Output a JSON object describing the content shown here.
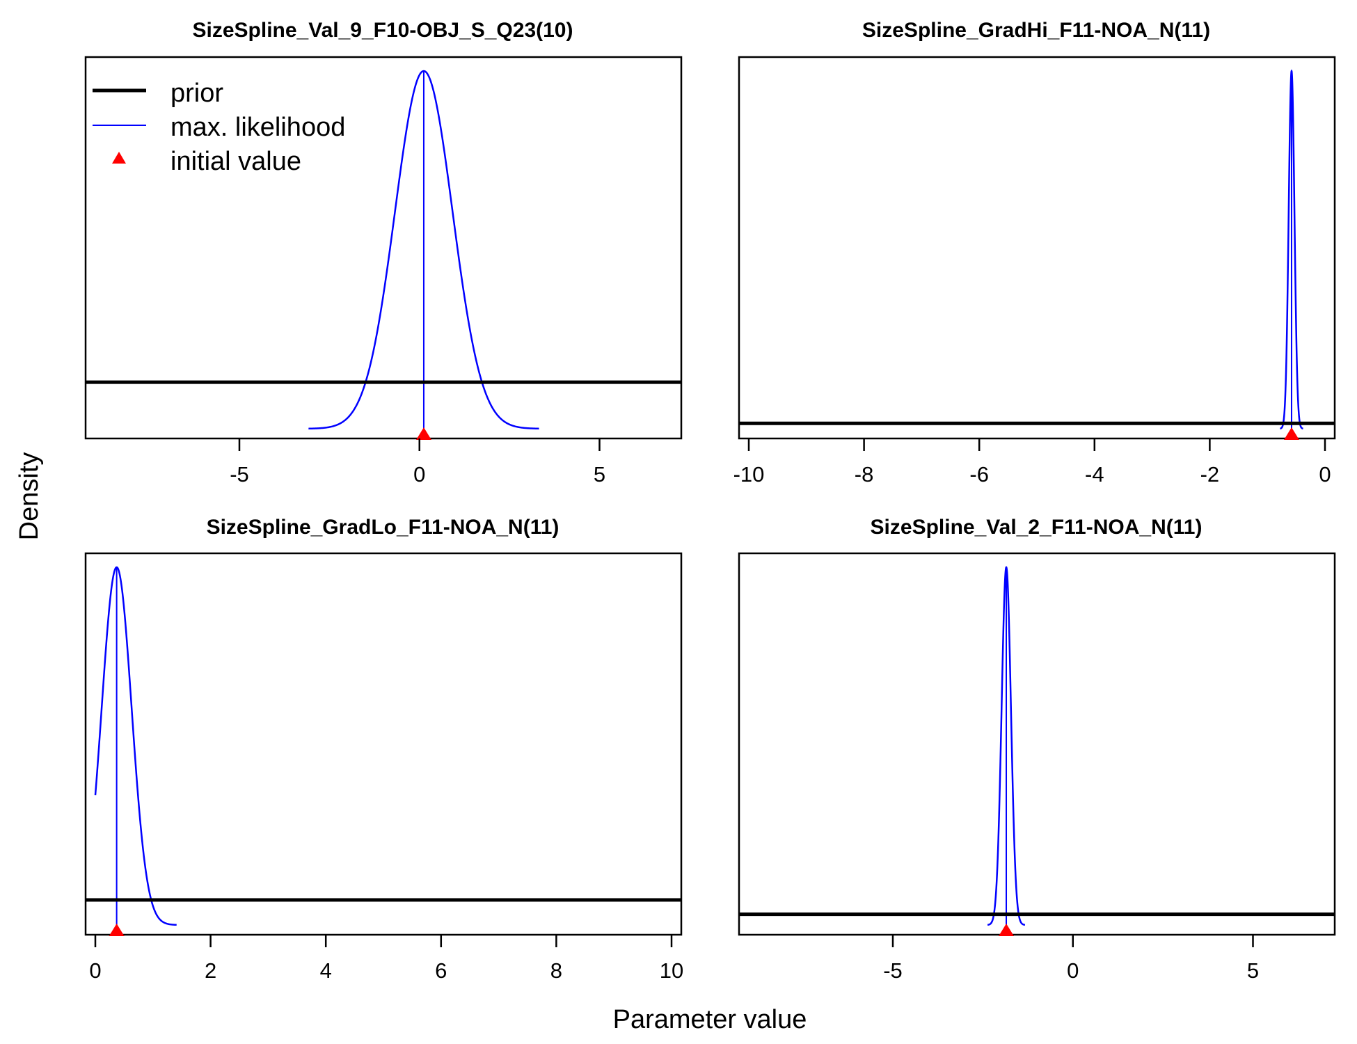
{
  "figure": {
    "xlabel": "Parameter value",
    "ylabel": "Density",
    "legend": {
      "placement": "top-left of first panel",
      "entries": [
        {
          "label": "prior",
          "style": "line",
          "color": "#000000"
        },
        {
          "label": "max. likelihood",
          "style": "line",
          "color": "#0000ff"
        },
        {
          "label": "initial value",
          "style": "triangle",
          "color": "#ff0000"
        }
      ]
    },
    "colors": {
      "prior": "#000000",
      "max_likelihood": "#0000ff",
      "initial_value": "#ff0000",
      "vertical_line": "#0000ff"
    }
  },
  "chart_data": [
    {
      "type": "line",
      "title": "SizeSpline_Val_9_F10-OBJ_S_Q23(10)",
      "xlim": [
        -9,
        7
      ],
      "ticks": [
        -5,
        0,
        5
      ],
      "tick_labels": [
        "-5",
        "0",
        "5"
      ],
      "ylim": [
        0,
        1
      ],
      "grid": false,
      "prior_density": 0.13,
      "ml": {
        "mean": 0.12,
        "sd": 0.8,
        "peak": 1.0
      },
      "initial_value": 0.12
    },
    {
      "type": "line",
      "title": "SizeSpline_GradHi_F11-NOA_N(11)",
      "xlim": [
        -10,
        0
      ],
      "ticks": [
        -10,
        -8,
        -6,
        -4,
        -2,
        0
      ],
      "tick_labels": [
        "-10",
        "-8",
        "-6",
        "-4",
        "-2",
        "0"
      ],
      "ylim": [
        0,
        1
      ],
      "grid": false,
      "prior_density": 0.015,
      "ml": {
        "mean": -0.58,
        "sd": 0.05,
        "peak": 1.0
      },
      "initial_value": -0.58
    },
    {
      "type": "line",
      "title": "SizeSpline_GradLo_F11-NOA_N(11)",
      "xlim": [
        0,
        10
      ],
      "ticks": [
        0,
        2,
        4,
        6,
        8,
        10
      ],
      "tick_labels": [
        "0",
        "2",
        "4",
        "6",
        "8",
        "10"
      ],
      "ylim": [
        0,
        1
      ],
      "grid": false,
      "prior_density": 0.07,
      "ml": {
        "mean": 0.37,
        "sd": 0.26,
        "peak": 1.0
      },
      "initial_value": 0.37
    },
    {
      "type": "line",
      "title": "SizeSpline_Val_2_F11-NOA_N(11)",
      "xlim": [
        -9,
        7
      ],
      "ticks": [
        -5,
        0,
        5
      ],
      "tick_labels": [
        "-5",
        "0",
        "5"
      ],
      "ylim": [
        0,
        1
      ],
      "grid": false,
      "prior_density": 0.03,
      "ml": {
        "mean": -1.85,
        "sd": 0.13,
        "peak": 1.0
      },
      "initial_value": -1.85
    }
  ]
}
